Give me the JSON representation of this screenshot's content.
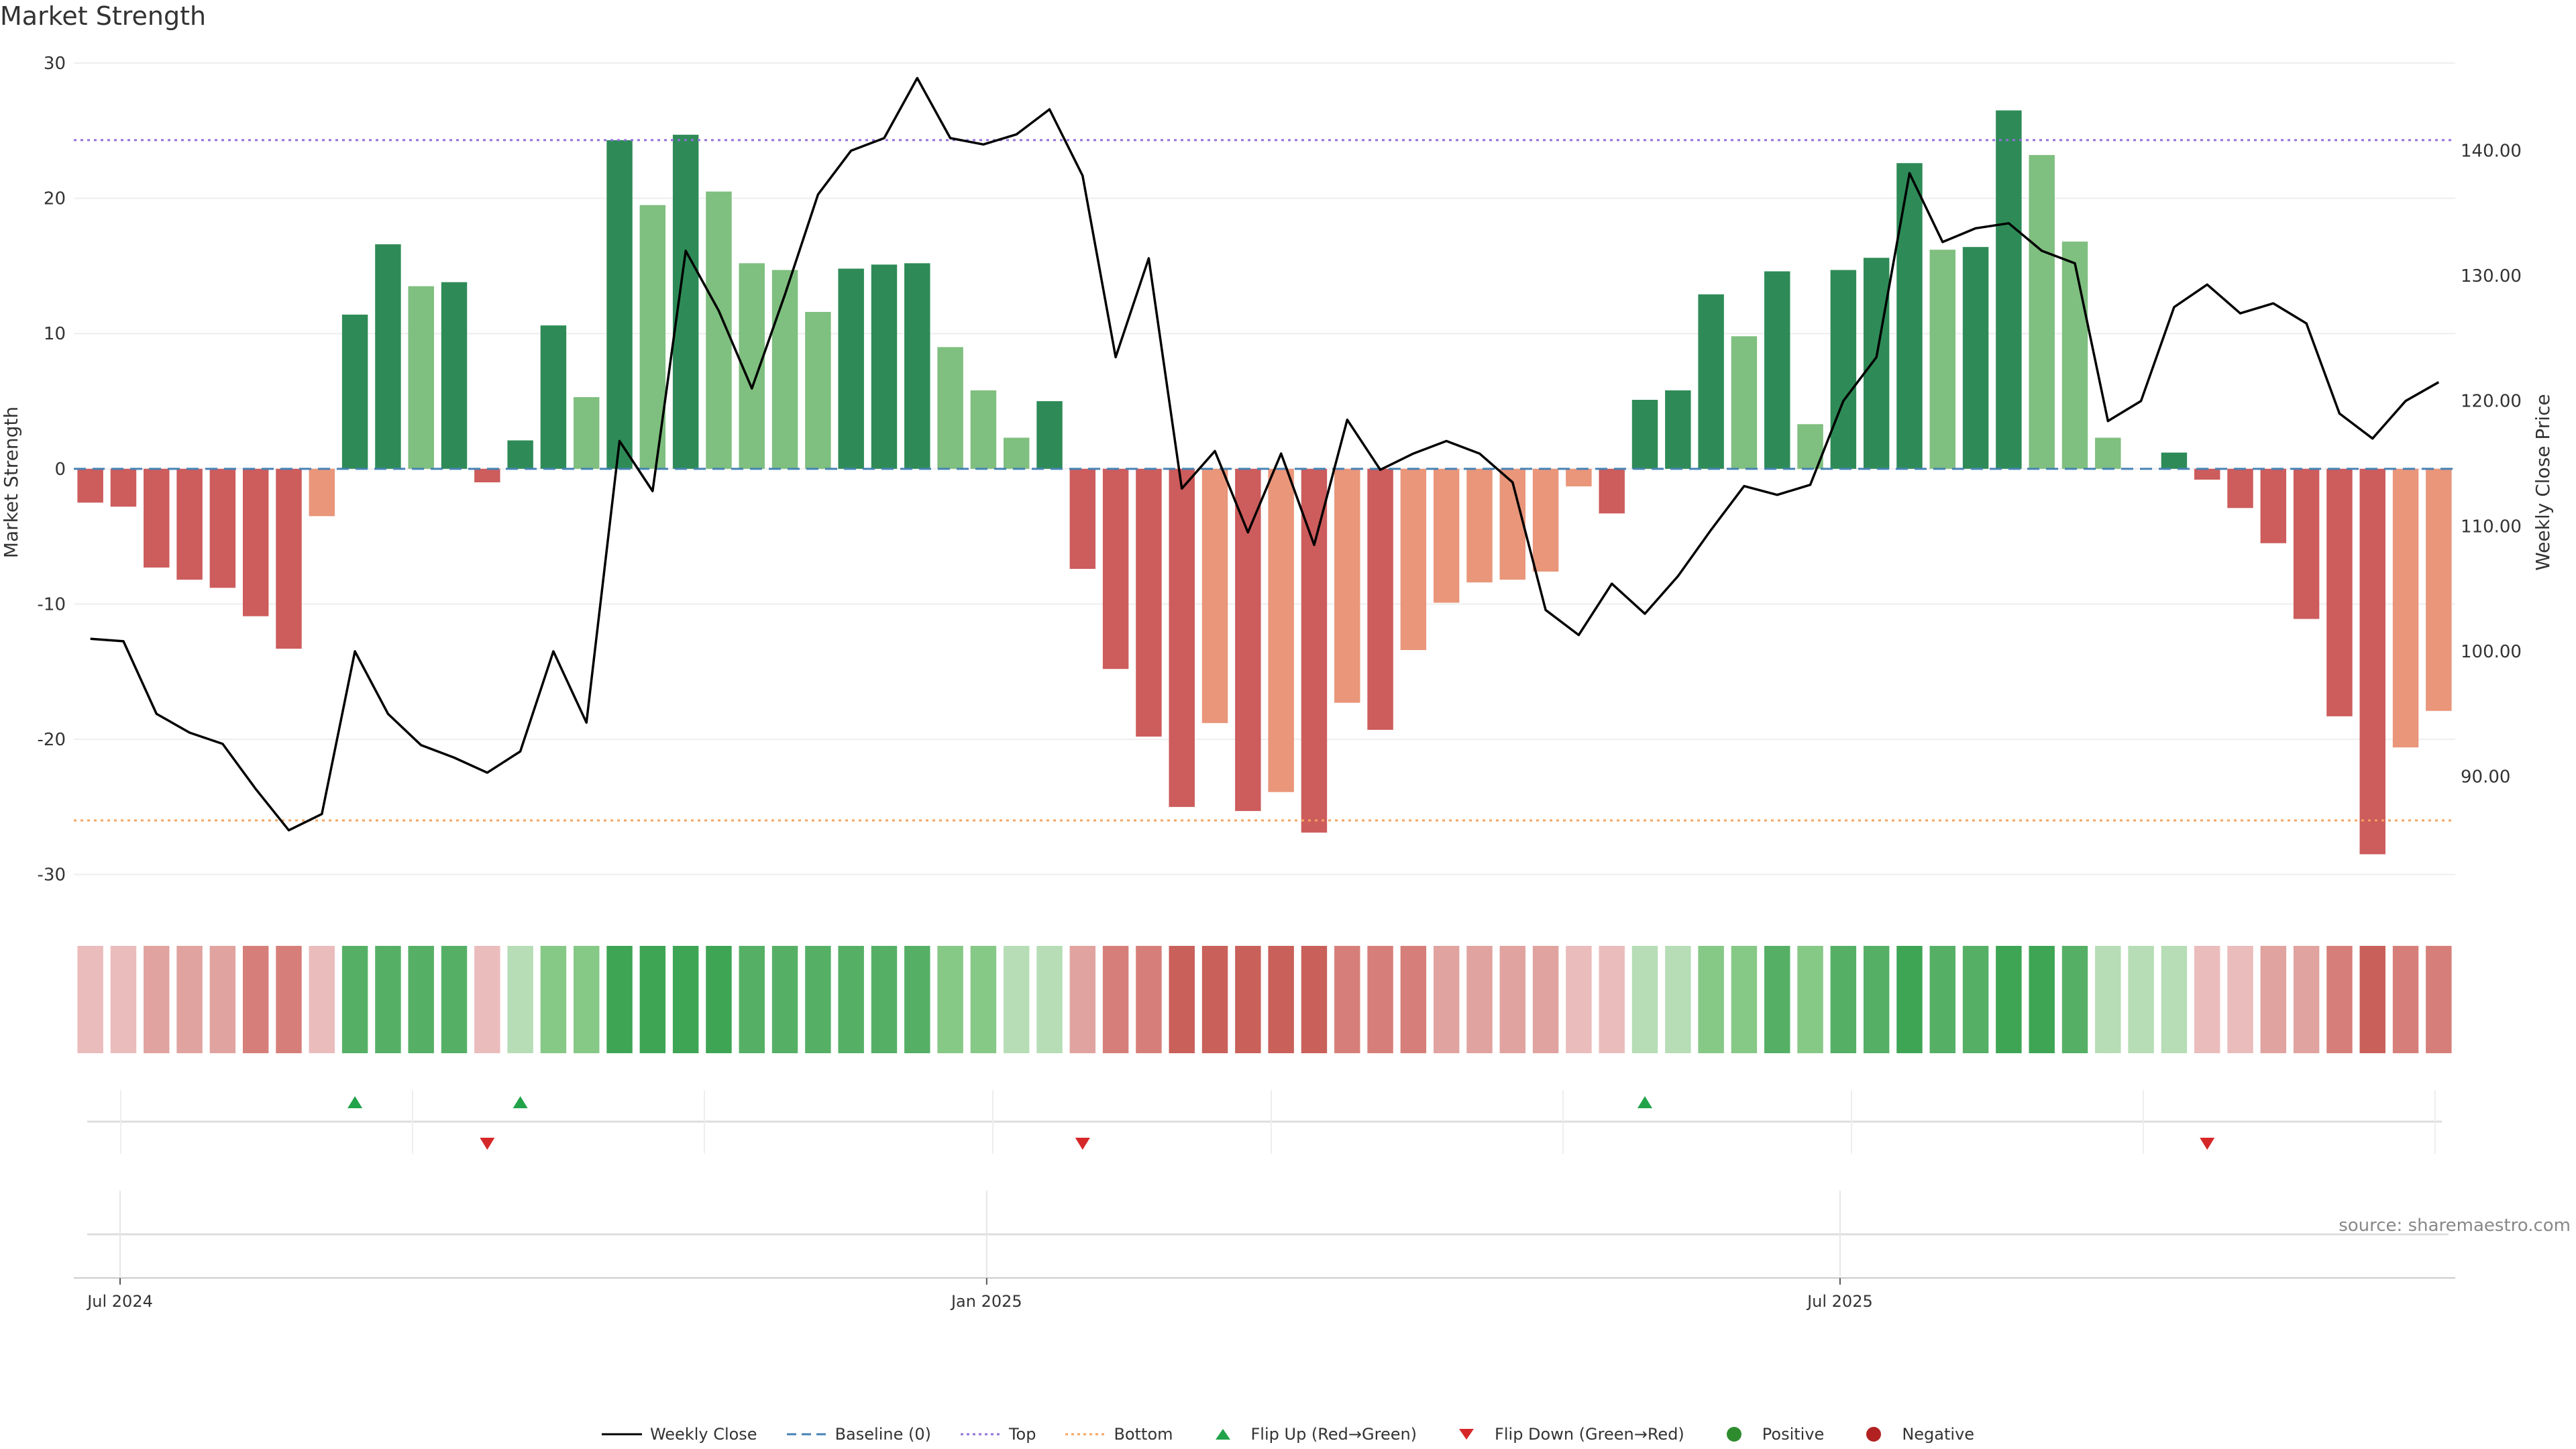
{
  "title": "Market Strength",
  "source": "source: sharemaestro.com",
  "colors": {
    "pos_strong": "#2e8b57",
    "pos_weak": "#7fbf7f",
    "neg_strong": "#cd5c5c",
    "neg_weak": "#e9967a",
    "price_line": "#000000",
    "baseline": "#4682b4",
    "top": "#9370db",
    "bottom": "#f4a460",
    "flip_up": "#22a34a",
    "flip_down": "#d62728",
    "positive_dot": "#2e8b2e",
    "negative_dot": "#b22222"
  },
  "chart_data": {
    "type": "bar",
    "title": "Market Strength",
    "ylabel": "Market Strength",
    "y2label": "Weekly Close Price",
    "ylim": [
      -32,
      30
    ],
    "y_ticks": [
      30,
      20,
      10,
      0,
      -10,
      -20,
      -30
    ],
    "y2lim": [
      80,
      147
    ],
    "y2_ticks": [
      "140.00",
      "130.00",
      "120.00",
      "110.00",
      "100.00",
      "90.00"
    ],
    "y2_tick_values": [
      140,
      130,
      120,
      110,
      100,
      90
    ],
    "x_ticks": [
      {
        "label": "Jul 2024",
        "index": 1.4
      },
      {
        "label": "Jan 2025",
        "index": 27.6
      },
      {
        "label": "Jul 2025",
        "index": 53.4
      }
    ],
    "top_level": 24.3,
    "bottom_level": -26,
    "baseline_level": 0,
    "bars": [
      {
        "v": -2.5,
        "c": "ns"
      },
      {
        "v": -2.8,
        "c": "ns"
      },
      {
        "v": -7.3,
        "c": "ns"
      },
      {
        "v": -8.2,
        "c": "ns"
      },
      {
        "v": -8.8,
        "c": "ns"
      },
      {
        "v": -10.9,
        "c": "ns"
      },
      {
        "v": -13.3,
        "c": "ns"
      },
      {
        "v": -3.5,
        "c": "nw"
      },
      {
        "v": 11.4,
        "c": "ps"
      },
      {
        "v": 16.6,
        "c": "ps"
      },
      {
        "v": 13.5,
        "c": "pw"
      },
      {
        "v": 13.8,
        "c": "ps"
      },
      {
        "v": -1.0,
        "c": "ns"
      },
      {
        "v": 2.1,
        "c": "ps"
      },
      {
        "v": 10.6,
        "c": "ps"
      },
      {
        "v": 5.3,
        "c": "pw"
      },
      {
        "v": 24.3,
        "c": "ps"
      },
      {
        "v": 19.5,
        "c": "pw"
      },
      {
        "v": 24.7,
        "c": "ps"
      },
      {
        "v": 20.5,
        "c": "pw"
      },
      {
        "v": 15.2,
        "c": "pw"
      },
      {
        "v": 14.7,
        "c": "pw"
      },
      {
        "v": 11.6,
        "c": "pw"
      },
      {
        "v": 14.8,
        "c": "ps"
      },
      {
        "v": 15.1,
        "c": "ps"
      },
      {
        "v": 15.2,
        "c": "ps"
      },
      {
        "v": 9.0,
        "c": "pw"
      },
      {
        "v": 5.8,
        "c": "pw"
      },
      {
        "v": 2.3,
        "c": "pw"
      },
      {
        "v": 5.0,
        "c": "ps"
      },
      {
        "v": -7.4,
        "c": "ns"
      },
      {
        "v": -14.8,
        "c": "ns"
      },
      {
        "v": -19.8,
        "c": "ns"
      },
      {
        "v": -25.0,
        "c": "ns"
      },
      {
        "v": -18.8,
        "c": "nw"
      },
      {
        "v": -25.3,
        "c": "ns"
      },
      {
        "v": -23.9,
        "c": "nw"
      },
      {
        "v": -26.9,
        "c": "ns"
      },
      {
        "v": -17.3,
        "c": "nw"
      },
      {
        "v": -19.3,
        "c": "ns"
      },
      {
        "v": -13.4,
        "c": "nw"
      },
      {
        "v": -9.9,
        "c": "nw"
      },
      {
        "v": -8.4,
        "c": "nw"
      },
      {
        "v": -8.2,
        "c": "nw"
      },
      {
        "v": -7.6,
        "c": "nw"
      },
      {
        "v": -1.3,
        "c": "nw"
      },
      {
        "v": -3.3,
        "c": "ns"
      },
      {
        "v": 5.1,
        "c": "ps"
      },
      {
        "v": 5.8,
        "c": "ps"
      },
      {
        "v": 12.9,
        "c": "ps"
      },
      {
        "v": 9.8,
        "c": "pw"
      },
      {
        "v": 14.6,
        "c": "ps"
      },
      {
        "v": 3.3,
        "c": "pw"
      },
      {
        "v": 14.7,
        "c": "ps"
      },
      {
        "v": 15.6,
        "c": "ps"
      },
      {
        "v": 22.6,
        "c": "ps"
      },
      {
        "v": 16.2,
        "c": "pw"
      },
      {
        "v": 16.4,
        "c": "ps"
      },
      {
        "v": 26.5,
        "c": "ps"
      },
      {
        "v": 23.2,
        "c": "pw"
      },
      {
        "v": 16.8,
        "c": "pw"
      },
      {
        "v": 2.3,
        "c": "pw"
      },
      {
        "v": 0.0,
        "c": "ps"
      },
      {
        "v": 1.2,
        "c": "ps"
      },
      {
        "v": -0.8,
        "c": "ns"
      },
      {
        "v": -2.9,
        "c": "ns"
      },
      {
        "v": -5.5,
        "c": "ns"
      },
      {
        "v": -11.1,
        "c": "ns"
      },
      {
        "v": -18.3,
        "c": "ns"
      },
      {
        "v": -28.5,
        "c": "ns"
      },
      {
        "v": -20.6,
        "c": "nw"
      },
      {
        "v": -17.9,
        "c": "nw"
      }
    ],
    "price": [
      101,
      100.8,
      95,
      93.5,
      92.6,
      89,
      85.7,
      87,
      100,
      95,
      92.5,
      91.5,
      90.3,
      92,
      100,
      94.3,
      116.8,
      112.8,
      132,
      127.2,
      121,
      128.5,
      136.5,
      140,
      141,
      145.8,
      141,
      140.5,
      141.3,
      143.3,
      138,
      123.5,
      131.4,
      113,
      116,
      109.5,
      115.8,
      108.5,
      118.5,
      114.5,
      115.8,
      116.8,
      115.8,
      113.5,
      103.3,
      101.3,
      105.4,
      103,
      106,
      109.7,
      113.2,
      112.5,
      113.3,
      120,
      123.5,
      138.2,
      132.7,
      133.8,
      134.2,
      132,
      131,
      118.4,
      120,
      127.5,
      129.3,
      127,
      127.8,
      126.2,
      119,
      117,
      120,
      121.5
    ],
    "strength_heat": [
      1,
      1,
      2,
      2,
      2,
      3,
      3,
      1,
      3,
      3,
      3,
      3,
      1,
      1,
      2,
      2,
      4,
      4,
      4,
      4,
      3,
      3,
      3,
      3,
      3,
      3,
      2,
      2,
      1,
      1,
      2,
      3,
      3,
      4,
      4,
      4,
      4,
      4,
      3,
      3,
      3,
      2,
      2,
      2,
      2,
      1,
      1,
      1,
      1,
      2,
      2,
      3,
      2,
      3,
      3,
      4,
      3,
      3,
      4,
      4,
      3,
      1,
      1,
      1,
      1,
      1,
      2,
      2,
      3,
      4,
      3,
      3
    ],
    "strength_heat_sign": [
      "n",
      "n",
      "n",
      "n",
      "n",
      "n",
      "n",
      "n",
      "p",
      "p",
      "p",
      "p",
      "n",
      "p",
      "p",
      "p",
      "p",
      "p",
      "p",
      "p",
      "p",
      "p",
      "p",
      "p",
      "p",
      "p",
      "p",
      "p",
      "p",
      "p",
      "n",
      "n",
      "n",
      "n",
      "n",
      "n",
      "n",
      "n",
      "n",
      "n",
      "n",
      "n",
      "n",
      "n",
      "n",
      "n",
      "n",
      "p",
      "p",
      "p",
      "p",
      "p",
      "p",
      "p",
      "p",
      "p",
      "p",
      "p",
      "p",
      "p",
      "p",
      "p",
      "p",
      "p",
      "n",
      "n",
      "n",
      "n",
      "n",
      "n",
      "n",
      "n"
    ],
    "flip_up_index": [
      8,
      13,
      47
    ],
    "flip_down_index": [
      12,
      30,
      64
    ],
    "legend": [
      {
        "key": "line",
        "label": "Weekly Close"
      },
      {
        "key": "baseline",
        "label": "Baseline (0)"
      },
      {
        "key": "top",
        "label": "Top"
      },
      {
        "key": "bottom",
        "label": "Bottom"
      },
      {
        "key": "flip_up",
        "label": "Flip Up (Red→Green)"
      },
      {
        "key": "flip_down",
        "label": "Flip Down (Green→Red)"
      },
      {
        "key": "positive",
        "label": "Positive"
      },
      {
        "key": "negative",
        "label": "Negative"
      }
    ]
  }
}
